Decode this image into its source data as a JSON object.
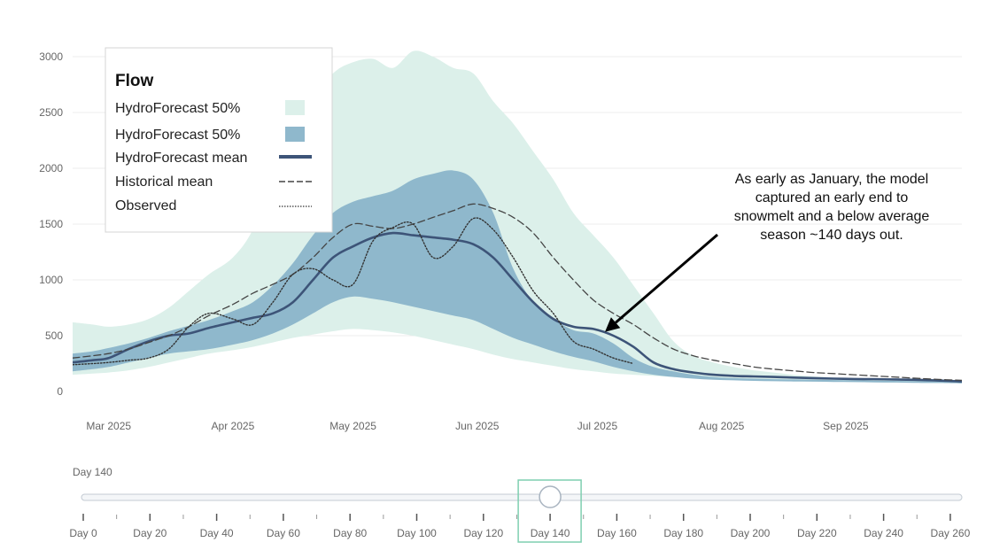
{
  "chart_data": {
    "type": "area",
    "title": "",
    "xlabel": "",
    "ylabel": "",
    "ylim": [
      0,
      3000
    ],
    "yticks": [
      0,
      500,
      1000,
      1500,
      2000,
      2500,
      3000
    ],
    "xlim": [
      "2025-02-20",
      "2025-09-30"
    ],
    "xticks": [
      {
        "date": "2025-03-01",
        "label": "Mar 2025"
      },
      {
        "date": "2025-04-01",
        "label": "Apr 2025"
      },
      {
        "date": "2025-05-01",
        "label": "May 2025"
      },
      {
        "date": "2025-06-01",
        "label": "Jun 2025"
      },
      {
        "date": "2025-07-01",
        "label": "Jul 2025"
      },
      {
        "date": "2025-08-01",
        "label": "Aug 2025"
      },
      {
        "date": "2025-09-01",
        "label": "Sep 2025"
      }
    ],
    "grid": true,
    "legend_placement": "top-left",
    "legend_title": "Flow",
    "x": [
      "2025-02-20",
      "2025-02-25",
      "2025-03-01",
      "2025-03-06",
      "2025-03-11",
      "2025-03-16",
      "2025-03-21",
      "2025-03-26",
      "2025-04-01",
      "2025-04-06",
      "2025-04-11",
      "2025-04-16",
      "2025-04-21",
      "2025-04-26",
      "2025-05-01",
      "2025-05-06",
      "2025-05-11",
      "2025-05-16",
      "2025-05-21",
      "2025-05-26",
      "2025-05-31",
      "2025-06-05",
      "2025-06-10",
      "2025-06-15",
      "2025-06-20",
      "2025-06-25",
      "2025-06-30",
      "2025-07-05",
      "2025-07-10",
      "2025-07-15",
      "2025-07-20",
      "2025-07-25",
      "2025-07-30",
      "2025-08-04",
      "2025-08-09",
      "2025-08-14",
      "2025-08-19",
      "2025-08-24",
      "2025-08-29",
      "2025-09-03",
      "2025-09-08",
      "2025-09-13",
      "2025-09-18",
      "2025-09-23",
      "2025-09-30"
    ],
    "series": [
      {
        "name": "HydroForecast 50%",
        "kind": "band-outer",
        "color": "#dcf0ea",
        "lower": [
          150,
          160,
          170,
          190,
          220,
          260,
          300,
          340,
          370,
          400,
          440,
          480,
          510,
          540,
          560,
          550,
          530,
          500,
          460,
          420,
          380,
          330,
          290,
          260,
          230,
          200,
          180,
          160,
          150,
          140,
          130,
          120,
          110,
          105,
          100,
          95,
          92,
          90,
          88,
          86,
          84,
          82,
          80,
          78,
          75
        ],
        "upper": [
          620,
          600,
          580,
          600,
          650,
          750,
          900,
          1050,
          1200,
          1450,
          1900,
          2300,
          2600,
          2850,
          2950,
          2980,
          2900,
          3050,
          3000,
          2900,
          2850,
          2600,
          2400,
          2150,
          1900,
          1600,
          1400,
          1200,
          950,
          700,
          450,
          320,
          260,
          220,
          190,
          170,
          150,
          135,
          125,
          118,
          112,
          108,
          104,
          100,
          95
        ]
      },
      {
        "name": "HydroForecast 50%",
        "kind": "band-inner",
        "color": "#8fb8cc",
        "lower": [
          180,
          200,
          220,
          260,
          300,
          340,
          360,
          380,
          420,
          460,
          520,
          600,
          700,
          800,
          850,
          830,
          800,
          760,
          720,
          680,
          640,
          560,
          480,
          420,
          360,
          310,
          270,
          220,
          180,
          150,
          130,
          115,
          105,
          100,
          95,
          92,
          90,
          88,
          86,
          84,
          82,
          80,
          78,
          76,
          72
        ],
        "upper": [
          340,
          360,
          390,
          430,
          480,
          540,
          590,
          640,
          720,
          800,
          950,
          1150,
          1400,
          1600,
          1700,
          1750,
          1800,
          1900,
          1950,
          1980,
          1900,
          1600,
          1100,
          800,
          650,
          550,
          520,
          430,
          300,
          220,
          180,
          150,
          130,
          120,
          115,
          110,
          108,
          105,
          102,
          100,
          98,
          95,
          92,
          90,
          85
        ]
      },
      {
        "name": "HydroForecast mean",
        "kind": "line",
        "color": "#3d5478",
        "values": [
          260,
          280,
          300,
          380,
          450,
          500,
          520,
          570,
          620,
          660,
          700,
          800,
          1000,
          1200,
          1300,
          1380,
          1420,
          1400,
          1380,
          1360,
          1320,
          1200,
          1000,
          800,
          650,
          580,
          560,
          500,
          400,
          260,
          200,
          170,
          150,
          140,
          135,
          130,
          125,
          120,
          115,
          112,
          110,
          108,
          105,
          100,
          90
        ]
      },
      {
        "name": "Historical mean",
        "kind": "dashed",
        "color": "#444444",
        "values": [
          300,
          320,
          340,
          380,
          440,
          500,
          580,
          680,
          780,
          880,
          960,
          1050,
          1200,
          1380,
          1500,
          1480,
          1460,
          1500,
          1560,
          1620,
          1680,
          1640,
          1560,
          1420,
          1200,
          1000,
          820,
          700,
          600,
          480,
          380,
          320,
          280,
          250,
          220,
          200,
          185,
          170,
          160,
          150,
          140,
          130,
          120,
          110,
          100
        ]
      },
      {
        "name": "Observed",
        "kind": "dotted",
        "color": "#333333",
        "values": [
          240,
          250,
          260,
          280,
          300,
          380,
          580,
          700,
          650,
          600,
          800,
          1050,
          1100,
          1000,
          960,
          1350,
          1470,
          1500,
          1200,
          1300,
          1550,
          1450,
          1200,
          900,
          700,
          450,
          380,
          300,
          250,
          null,
          null,
          null,
          null,
          null,
          null,
          null,
          null,
          null,
          null,
          null,
          null,
          null,
          null,
          null,
          null
        ]
      }
    ],
    "annotation": {
      "lines": [
        "As early as January, the model",
        "captured an early end to",
        "snowmelt and a below average",
        "season ~140 days out."
      ],
      "arrow_target": {
        "date": "2025-07-02",
        "value": 550
      }
    }
  },
  "slider": {
    "caption": "Day 140",
    "value": 140,
    "min": 0,
    "max": 260,
    "ticks": [
      "Day 0",
      "Day 20",
      "Day 40",
      "Day 60",
      "Day 80",
      "Day 100",
      "Day 120",
      "Day 140",
      "Day 160",
      "Day 180",
      "Day 200",
      "Day 220",
      "Day 240",
      "Day 260"
    ],
    "highlight_color": "#7fcfb0"
  }
}
